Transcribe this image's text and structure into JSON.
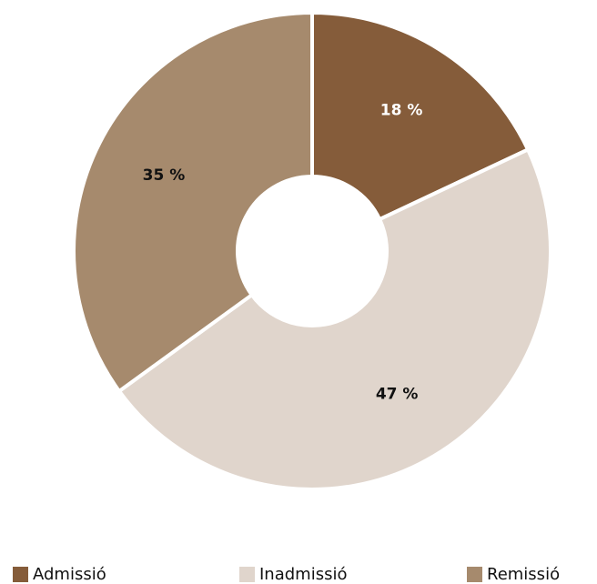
{
  "chart_data": {
    "type": "pie",
    "donut": true,
    "categories": [
      "Admissió",
      "Inadmissió",
      "Remissió"
    ],
    "values": [
      18,
      47,
      35
    ],
    "data_labels": [
      "18 %",
      "47 %",
      "35 %"
    ],
    "colors": [
      "#855c3a",
      "#e0d5cc",
      "#a68a6d"
    ],
    "label_colors": [
      "#ffffff",
      "#111111",
      "#111111"
    ],
    "legend_position": "bottom",
    "start_angle": "12 o'clock",
    "direction": "clockwise"
  }
}
